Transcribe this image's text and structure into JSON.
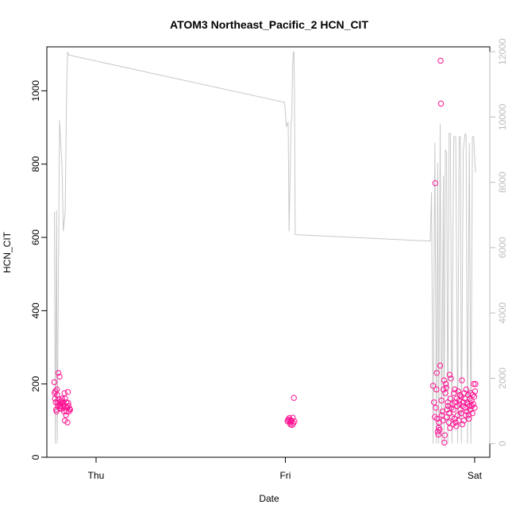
{
  "chart_data": {
    "type": "scatter",
    "title": "ATOM3 Northeast_Pacific_2 HCN_CIT",
    "xlabel": "Date",
    "ylabel": "HCN_CIT",
    "x_units": "days",
    "x_ticks": [
      {
        "value": 0.5,
        "label": "Thu"
      },
      {
        "value": 1.5,
        "label": "Fri"
      },
      {
        "value": 2.5,
        "label": "Sat"
      }
    ],
    "xlim": [
      0.24,
      2.58
    ],
    "ylim": [
      0,
      1120
    ],
    "y_ticks": [
      0,
      200,
      400,
      600,
      800,
      1000
    ],
    "y2lim": [
      -420,
      12150
    ],
    "y2_ticks": [
      0,
      2000,
      4000,
      6000,
      8000,
      10000,
      12000
    ],
    "grid": false,
    "colors": {
      "points": "#ff1493",
      "line": "#c8c8c8",
      "right_axis": "#bdbdbd"
    },
    "series": [
      {
        "type": "scatter",
        "axis": "left",
        "points": [
          [
            0.28,
            205
          ],
          [
            0.281,
            175
          ],
          [
            0.283,
            160
          ],
          [
            0.285,
            180
          ],
          [
            0.287,
            150
          ],
          [
            0.289,
            130
          ],
          [
            0.291,
            125
          ],
          [
            0.293,
            185
          ],
          [
            0.295,
            170
          ],
          [
            0.297,
            148
          ],
          [
            0.299,
            140
          ],
          [
            0.301,
            230
          ],
          [
            0.303,
            158
          ],
          [
            0.305,
            145
          ],
          [
            0.307,
            220
          ],
          [
            0.309,
            135
          ],
          [
            0.311,
            150
          ],
          [
            0.313,
            140
          ],
          [
            0.315,
            155
          ],
          [
            0.317,
            132
          ],
          [
            0.319,
            148
          ],
          [
            0.321,
            160
          ],
          [
            0.323,
            137
          ],
          [
            0.325,
            150
          ],
          [
            0.327,
            145
          ],
          [
            0.329,
            140
          ],
          [
            0.331,
            125
          ],
          [
            0.333,
            175
          ],
          [
            0.335,
            100
          ],
          [
            0.337,
            160
          ],
          [
            0.339,
            140
          ],
          [
            0.341,
            115
          ],
          [
            0.343,
            150
          ],
          [
            0.345,
            125
          ],
          [
            0.347,
            135
          ],
          [
            0.349,
            95
          ],
          [
            0.351,
            178
          ],
          [
            0.353,
            148
          ],
          [
            0.355,
            140
          ],
          [
            0.357,
            125
          ],
          [
            0.36,
            132
          ],
          [
            0.363,
            130
          ],
          [
            1.512,
            98
          ],
          [
            1.515,
            103
          ],
          [
            1.518,
            100
          ],
          [
            1.521,
            107
          ],
          [
            1.524,
            95
          ],
          [
            1.527,
            90
          ],
          [
            1.53,
            101
          ],
          [
            1.533,
            99
          ],
          [
            1.536,
            88
          ],
          [
            1.539,
            108
          ],
          [
            1.542,
            93
          ],
          [
            1.545,
            162
          ],
          [
            1.548,
            98
          ],
          [
            2.28,
            195
          ],
          [
            2.285,
            150
          ],
          [
            2.29,
            110
          ],
          [
            2.292,
            748
          ],
          [
            2.295,
            135
          ],
          [
            2.298,
            185
          ],
          [
            2.3,
            230
          ],
          [
            2.302,
            105
          ],
          [
            2.305,
            70
          ],
          [
            2.308,
            62
          ],
          [
            2.31,
            80
          ],
          [
            2.312,
            95
          ],
          [
            2.315,
            75
          ],
          [
            2.318,
            250
          ],
          [
            2.32,
            1082
          ],
          [
            2.322,
            965
          ],
          [
            2.325,
            155
          ],
          [
            2.327,
            115
          ],
          [
            2.33,
            125
          ],
          [
            2.333,
            100
          ],
          [
            2.335,
            185
          ],
          [
            2.338,
            210
          ],
          [
            2.34,
            40
          ],
          [
            2.342,
            60
          ],
          [
            2.345,
            175
          ],
          [
            2.348,
            200
          ],
          [
            2.35,
            190
          ],
          [
            2.353,
            110
          ],
          [
            2.355,
            130
          ],
          [
            2.358,
            150
          ],
          [
            2.36,
            140
          ],
          [
            2.363,
            95
          ],
          [
            2.365,
            120
          ],
          [
            2.368,
            225
          ],
          [
            2.37,
            80
          ],
          [
            2.373,
            160
          ],
          [
            2.375,
            215
          ],
          [
            2.378,
            135
          ],
          [
            2.38,
            110
          ],
          [
            2.383,
            145
          ],
          [
            2.385,
            90
          ],
          [
            2.388,
            130
          ],
          [
            2.39,
            175
          ],
          [
            2.393,
            105
          ],
          [
            2.395,
            185
          ],
          [
            2.398,
            150
          ],
          [
            2.4,
            95
          ],
          [
            2.403,
            85
          ],
          [
            2.405,
            160
          ],
          [
            2.408,
            140
          ],
          [
            2.41,
            115
          ],
          [
            2.413,
            180
          ],
          [
            2.415,
            100
          ],
          [
            2.418,
            155
          ],
          [
            2.42,
            145
          ],
          [
            2.423,
            170
          ],
          [
            2.425,
            130
          ],
          [
            2.428,
            120
          ],
          [
            2.43,
            165
          ],
          [
            2.433,
            210
          ],
          [
            2.435,
            90
          ],
          [
            2.438,
            140
          ],
          [
            2.44,
            150
          ],
          [
            2.443,
            100
          ],
          [
            2.445,
            175
          ],
          [
            2.448,
            160
          ],
          [
            2.45,
            135
          ],
          [
            2.453,
            115
          ],
          [
            2.455,
            185
          ],
          [
            2.458,
            125
          ],
          [
            2.46,
            150
          ],
          [
            2.463,
            145
          ],
          [
            2.465,
            170
          ],
          [
            2.468,
            115
          ],
          [
            2.47,
            105
          ],
          [
            2.473,
            140
          ],
          [
            2.475,
            160
          ],
          [
            2.478,
            130
          ],
          [
            2.48,
            175
          ],
          [
            2.483,
            155
          ],
          [
            2.485,
            140
          ],
          [
            2.488,
            120
          ],
          [
            2.49,
            170
          ],
          [
            2.493,
            145
          ],
          [
            2.495,
            200
          ],
          [
            2.498,
            165
          ],
          [
            2.5,
            135
          ],
          [
            2.502,
            180
          ],
          [
            2.504,
            200
          ]
        ]
      },
      {
        "type": "line",
        "axis": "right",
        "points": [
          [
            0.28,
            7100
          ],
          [
            0.285,
            0
          ],
          [
            0.291,
            7150
          ],
          [
            0.295,
            0
          ],
          [
            0.307,
            9900
          ],
          [
            0.32,
            8500
          ],
          [
            0.327,
            6500
          ],
          [
            0.337,
            7100
          ],
          [
            0.345,
            11000
          ],
          [
            0.35,
            12000
          ],
          [
            0.355,
            11900
          ],
          [
            1.496,
            10450
          ],
          [
            1.505,
            9700
          ],
          [
            1.515,
            9850
          ],
          [
            1.52,
            6500
          ],
          [
            1.53,
            9800
          ],
          [
            1.534,
            10000
          ],
          [
            1.538,
            11500
          ],
          [
            1.542,
            12000
          ],
          [
            1.545,
            12000
          ],
          [
            1.548,
            10800
          ],
          [
            1.552,
            6400
          ],
          [
            2.265,
            6200
          ],
          [
            2.272,
            7700
          ],
          [
            2.28,
            0
          ],
          [
            2.29,
            9200
          ],
          [
            2.298,
            0
          ],
          [
            2.305,
            8600
          ],
          [
            2.31,
            0
          ],
          [
            2.318,
            9800
          ],
          [
            2.325,
            0
          ],
          [
            2.335,
            8200
          ],
          [
            2.338,
            0
          ],
          [
            2.345,
            9000
          ],
          [
            2.352,
            8900
          ],
          [
            2.358,
            0
          ],
          [
            2.365,
            9500
          ],
          [
            2.372,
            9500
          ],
          [
            2.38,
            0
          ],
          [
            2.385,
            6000
          ],
          [
            2.39,
            9400
          ],
          [
            2.4,
            9400
          ],
          [
            2.41,
            0
          ],
          [
            2.418,
            9400
          ],
          [
            2.425,
            9400
          ],
          [
            2.43,
            0
          ],
          [
            2.44,
            9000
          ],
          [
            2.45,
            9500
          ],
          [
            2.455,
            9400
          ],
          [
            2.462,
            0
          ],
          [
            2.472,
            9200
          ],
          [
            2.48,
            0
          ],
          [
            2.488,
            9400
          ],
          [
            2.495,
            9400
          ],
          [
            2.504,
            8300
          ]
        ]
      }
    ]
  }
}
